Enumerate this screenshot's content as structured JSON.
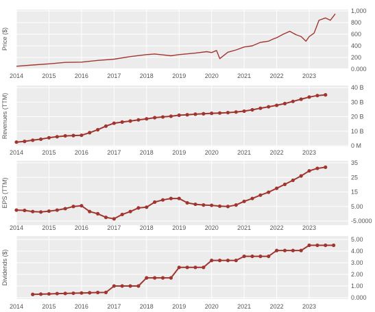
{
  "colors": {
    "series": "#a0352f",
    "panel": "#ececec",
    "grid": "#ffffff",
    "text": "#555555"
  },
  "x_labels": [
    "2014",
    "2015",
    "2016",
    "2017",
    "2018",
    "2019",
    "2020",
    "2021",
    "2022",
    "2023"
  ],
  "chart_data": [
    {
      "type": "line",
      "ylabel": "Price ($)",
      "ylim": [
        0,
        1000
      ],
      "y_ticks": [
        "1,000",
        "800",
        "600",
        "400",
        "200",
        "0.000"
      ],
      "y_tick_values": [
        1000,
        800,
        600,
        400,
        200,
        0
      ],
      "x": [
        2014.0,
        2014.5,
        2015.0,
        2015.5,
        2016.0,
        2016.5,
        2017.0,
        2017.5,
        2018.0,
        2018.25,
        2018.5,
        2018.75,
        2019.0,
        2019.5,
        2019.85,
        2020.0,
        2020.15,
        2020.25,
        2020.5,
        2020.75,
        2021.0,
        2021.25,
        2021.5,
        2021.75,
        2021.9,
        2022.0,
        2022.2,
        2022.4,
        2022.6,
        2022.75,
        2022.9,
        2023.0,
        2023.15,
        2023.3,
        2023.5,
        2023.65,
        2023.8
      ],
      "values": [
        50,
        70,
        90,
        115,
        120,
        150,
        170,
        215,
        250,
        260,
        245,
        230,
        250,
        275,
        300,
        285,
        320,
        180,
        290,
        330,
        380,
        400,
        460,
        480,
        520,
        540,
        600,
        650,
        590,
        560,
        480,
        560,
        620,
        840,
        880,
        840,
        950
      ]
    },
    {
      "type": "line",
      "ylabel": "Revenues (TTM)",
      "ylim": [
        0,
        40
      ],
      "y_ticks": [
        "40 B",
        "30 B",
        "20 B",
        "10 B",
        "0 M"
      ],
      "y_tick_values": [
        40,
        30,
        20,
        10,
        0
      ],
      "x": [
        2014.0,
        2014.25,
        2014.5,
        2014.75,
        2015.0,
        2015.25,
        2015.5,
        2015.75,
        2016.0,
        2016.25,
        2016.5,
        2016.75,
        2017.0,
        2017.25,
        2017.5,
        2017.75,
        2018.0,
        2018.25,
        2018.5,
        2018.75,
        2019.0,
        2019.25,
        2019.5,
        2019.75,
        2020.0,
        2020.25,
        2020.5,
        2020.75,
        2021.0,
        2021.25,
        2021.5,
        2021.75,
        2022.0,
        2022.25,
        2022.5,
        2022.75,
        2023.0,
        2023.25,
        2023.5
      ],
      "values": [
        2.5,
        3,
        3.8,
        4.5,
        5.5,
        6.2,
        6.8,
        7,
        7.2,
        9,
        11,
        13.5,
        15.5,
        16.3,
        17,
        17.8,
        18.5,
        19.3,
        19.8,
        20.3,
        21,
        21.3,
        21.7,
        22,
        22.3,
        22.5,
        22.8,
        23.2,
        23.8,
        24.7,
        25.8,
        26.8,
        27.8,
        29,
        30.5,
        32,
        33.5,
        34.5,
        35
      ]
    },
    {
      "type": "line",
      "ylabel": "EPS (TTM)",
      "ylim": [
        -5,
        35
      ],
      "y_ticks": [
        "35",
        "25",
        "15",
        "5.00",
        "-5.0000"
      ],
      "y_tick_values": [
        35,
        25,
        15,
        5,
        -5
      ],
      "x": [
        2014.0,
        2014.25,
        2014.5,
        2014.75,
        2015.0,
        2015.25,
        2015.5,
        2015.75,
        2016.0,
        2016.25,
        2016.5,
        2016.75,
        2017.0,
        2017.25,
        2017.5,
        2017.75,
        2018.0,
        2018.25,
        2018.5,
        2018.75,
        2019.0,
        2019.25,
        2019.5,
        2019.75,
        2020.0,
        2020.25,
        2020.5,
        2020.75,
        2021.0,
        2021.25,
        2021.5,
        2021.75,
        2022.0,
        2022.25,
        2022.5,
        2022.75,
        2023.0,
        2023.25,
        2023.5
      ],
      "values": [
        2.5,
        2.3,
        1.5,
        1.2,
        1.8,
        2.5,
        3.5,
        5,
        5.5,
        1.5,
        0,
        -2.5,
        -3.5,
        -0.5,
        1.5,
        4,
        4.5,
        8,
        9.5,
        10.5,
        10.5,
        7.5,
        6.5,
        6,
        5.8,
        5.2,
        5,
        6,
        8.5,
        10.5,
        12.8,
        14.8,
        17.5,
        20.2,
        23,
        26,
        29.5,
        31.2,
        32
      ]
    },
    {
      "type": "line",
      "ylabel": "Dividends ($)",
      "ylim": [
        0,
        5
      ],
      "y_ticks": [
        "5.00",
        "4.00",
        "3.00",
        "2.00",
        "1.00",
        "0.000"
      ],
      "y_tick_values": [
        5,
        4,
        3,
        2,
        1,
        0
      ],
      "x": [
        2014.5,
        2014.75,
        2015.0,
        2015.25,
        2015.5,
        2015.75,
        2016.0,
        2016.25,
        2016.5,
        2016.75,
        2017.0,
        2017.25,
        2017.5,
        2017.75,
        2018.0,
        2018.25,
        2018.5,
        2018.75,
        2019.0,
        2019.25,
        2019.5,
        2019.75,
        2020.0,
        2020.25,
        2020.5,
        2020.75,
        2021.0,
        2021.25,
        2021.5,
        2021.75,
        2022.0,
        2022.25,
        2022.5,
        2022.75,
        2023.0,
        2023.25,
        2023.5,
        2023.75
      ],
      "values": [
        0.28,
        0.3,
        0.32,
        0.35,
        0.36,
        0.38,
        0.4,
        0.42,
        0.44,
        0.45,
        1.0,
        1.0,
        1.0,
        1.0,
        1.7,
        1.7,
        1.7,
        1.7,
        2.6,
        2.6,
        2.6,
        2.6,
        3.2,
        3.2,
        3.2,
        3.2,
        3.55,
        3.55,
        3.55,
        3.55,
        4.05,
        4.05,
        4.05,
        4.05,
        4.5,
        4.5,
        4.5,
        4.5
      ],
      "markers": true
    }
  ]
}
